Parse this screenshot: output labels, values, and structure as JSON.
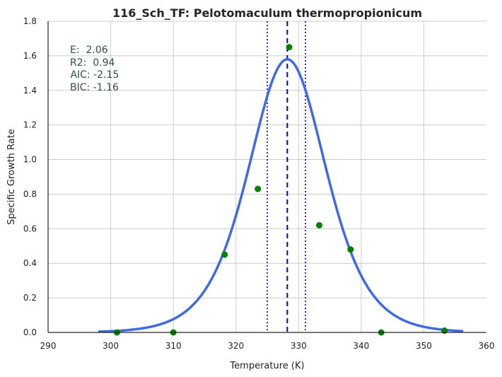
{
  "chart_data": {
    "type": "scatter",
    "title": "116_Sch_TF: Pelotomaculum thermopropionicum",
    "xlabel": "Temperature (K)",
    "ylabel": "Specific Growth Rate",
    "xlim": [
      290,
      360
    ],
    "ylim": [
      0,
      1.8
    ],
    "xticks": [
      "290",
      "300",
      "310",
      "320",
      "330",
      "340",
      "350",
      "360"
    ],
    "yticks": [
      "0.0",
      "0.2",
      "0.4",
      "0.6",
      "0.8",
      "1.0",
      "1.2",
      "1.4",
      "1.6",
      "1.8"
    ],
    "grid": true,
    "points": {
      "x": [
        301.0,
        310.0,
        318.2,
        323.5,
        328.5,
        333.3,
        338.3,
        343.2,
        353.3
      ],
      "y": [
        0.0,
        0.0,
        0.45,
        0.83,
        1.65,
        0.62,
        0.48,
        0.0,
        0.01
      ],
      "color": "#008000"
    },
    "fit_curve": {
      "color": "#4169e1",
      "x_range": [
        298,
        356.3
      ],
      "peak_x": 328.2,
      "peak_y": 1.58
    },
    "peak_line": {
      "x": 328.2,
      "color": "#0000cd",
      "style": "dashed"
    },
    "bound_lines": {
      "x": [
        325.0,
        331.1
      ],
      "color": "#0000cd",
      "style": "dotted"
    },
    "stats": [
      "E:  2.06",
      "R2:  0.94",
      " AIC: -2.15",
      "BIC: -1.16"
    ]
  }
}
